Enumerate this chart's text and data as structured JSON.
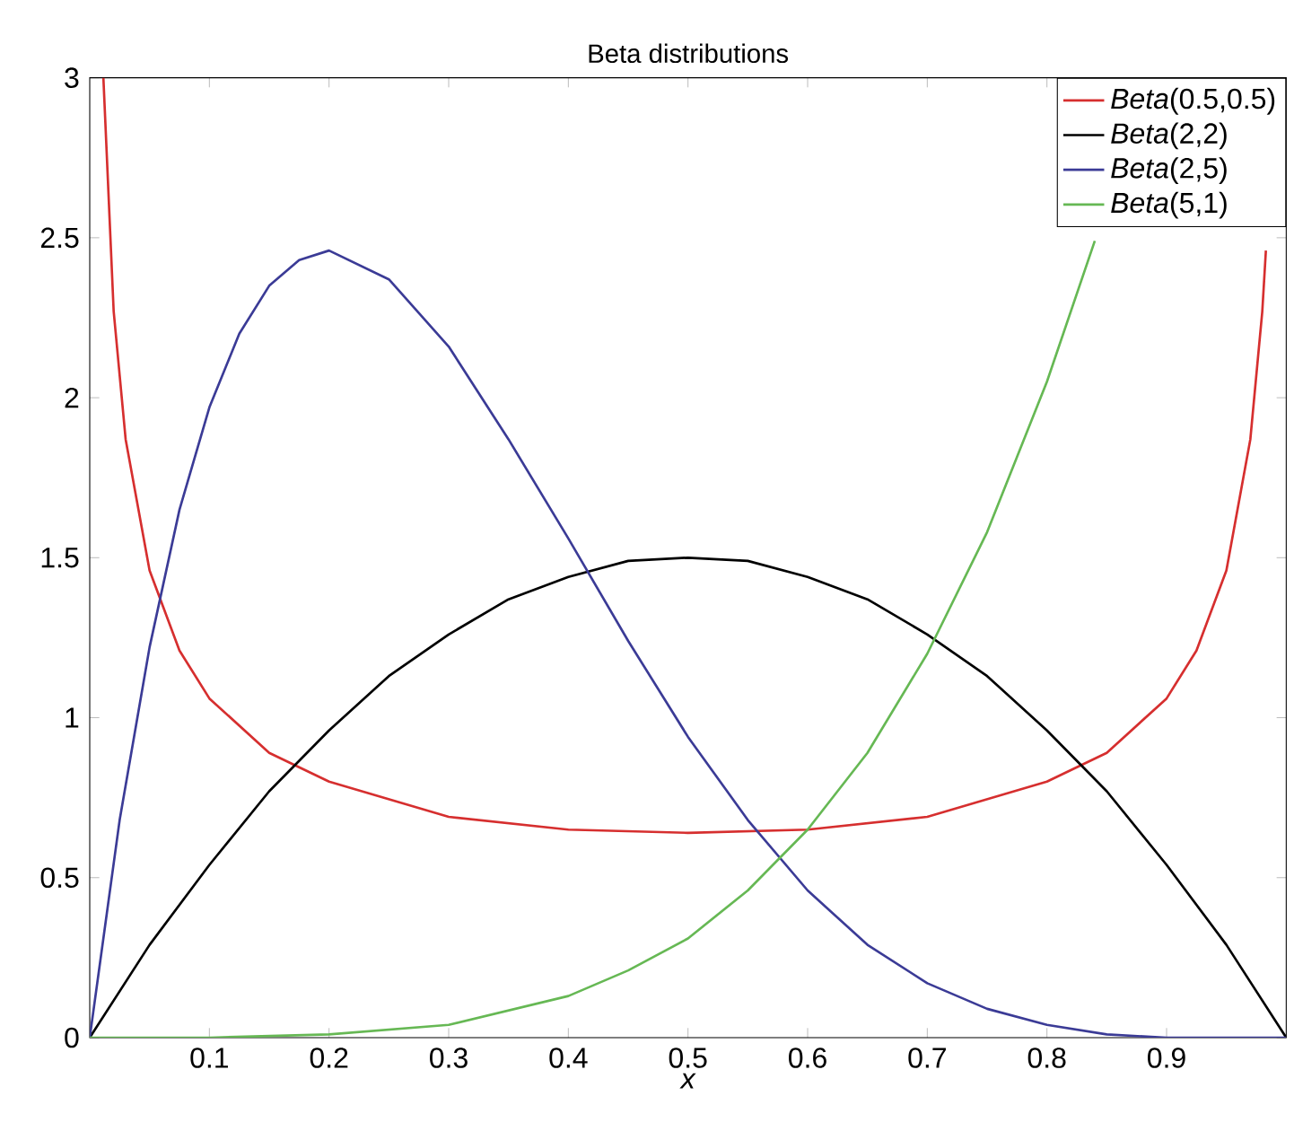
{
  "chart_data": {
    "type": "line",
    "title": "Beta distributions",
    "xlabel": "x",
    "xlim": [
      0,
      1
    ],
    "ylim": [
      0,
      3
    ],
    "xticks": [
      0.1,
      0.2,
      0.3,
      0.4,
      0.5,
      0.6,
      0.7,
      0.8,
      0.9
    ],
    "yticks": [
      0,
      0.5,
      1,
      1.5,
      2,
      2.5,
      3
    ],
    "legend": "top right",
    "grid": false,
    "marker": "none",
    "line_style": "solid",
    "series": [
      {
        "name": "*Beta*(0.5,0.5)",
        "color": "#d62f2f",
        "x": [
          0.0114,
          0.02,
          0.03,
          0.05,
          0.075,
          0.1,
          0.15,
          0.2,
          0.3,
          0.4,
          0.5,
          0.6,
          0.7,
          0.8,
          0.85,
          0.9,
          0.925,
          0.95,
          0.97,
          0.98,
          0.983
        ],
        "values": [
          3,
          2.27,
          1.87,
          1.46,
          1.21,
          1.06,
          0.89,
          0.8,
          0.69,
          0.65,
          0.64,
          0.65,
          0.69,
          0.8,
          0.89,
          1.06,
          1.21,
          1.46,
          1.87,
          2.27,
          2.46
        ]
      },
      {
        "name": "*Beta*(2,2)",
        "color": "#000000",
        "x": [
          0,
          0.05,
          0.1,
          0.15,
          0.2,
          0.25,
          0.3,
          0.35,
          0.4,
          0.45,
          0.5,
          0.55,
          0.6,
          0.65,
          0.7,
          0.75,
          0.8,
          0.85,
          0.9,
          0.95,
          1
        ],
        "values": [
          0,
          0.29,
          0.54,
          0.77,
          0.96,
          1.13,
          1.26,
          1.37,
          1.44,
          1.49,
          1.5,
          1.49,
          1.44,
          1.37,
          1.26,
          1.13,
          0.96,
          0.77,
          0.54,
          0.29,
          0
        ]
      },
      {
        "name": "*Beta*(2,5)",
        "color": "#3b3b96",
        "x": [
          0,
          0.025,
          0.05,
          0.075,
          0.1,
          0.125,
          0.15,
          0.175,
          0.2,
          0.25,
          0.3,
          0.35,
          0.4,
          0.45,
          0.5,
          0.55,
          0.6,
          0.65,
          0.7,
          0.75,
          0.8,
          0.85,
          0.9,
          1
        ],
        "values": [
          0,
          0.68,
          1.22,
          1.65,
          1.97,
          2.2,
          2.35,
          2.43,
          2.46,
          2.37,
          2.16,
          1.87,
          1.56,
          1.24,
          0.94,
          0.68,
          0.46,
          0.29,
          0.17,
          0.09,
          0.04,
          0.01,
          0,
          0
        ]
      },
      {
        "name": "*Beta*(5,1)",
        "color": "#66b854",
        "x": [
          0,
          0.1,
          0.2,
          0.3,
          0.4,
          0.45,
          0.5,
          0.55,
          0.6,
          0.65,
          0.7,
          0.75,
          0.8,
          0.84
        ],
        "values": [
          0,
          0,
          0.01,
          0.04,
          0.13,
          0.21,
          0.31,
          0.46,
          0.65,
          0.89,
          1.2,
          1.58,
          2.05,
          2.49
        ]
      }
    ]
  }
}
